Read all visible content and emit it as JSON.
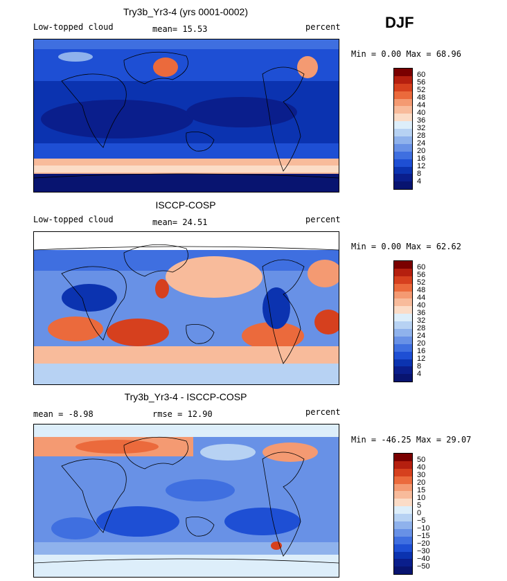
{
  "season": "DJF",
  "panels": [
    {
      "title": "Try3b_Yr3-4 (yrs 0001-0002)",
      "left_label": "Low-topped cloud",
      "center_label": "mean=  15.53",
      "right_label": "percent",
      "minmax": "Min =    0.00 Max =   68.96",
      "ticks": [
        "60",
        "56",
        "52",
        "48",
        "44",
        "40",
        "36",
        "32",
        "28",
        "24",
        "20",
        "16",
        "12",
        "8",
        "4"
      ]
    },
    {
      "title": "ISCCP-COSP",
      "left_label": "Low-topped cloud",
      "center_label": "mean=  24.51",
      "right_label": "percent",
      "minmax": "Min =    0.00 Max =   62.62",
      "ticks": [
        "60",
        "56",
        "52",
        "48",
        "44",
        "40",
        "36",
        "32",
        "28",
        "24",
        "20",
        "16",
        "12",
        "8",
        "4"
      ]
    },
    {
      "title": "Try3b_Yr3-4 - ISCCP-COSP",
      "left_label": "mean =   -8.98",
      "center_label": "rmse =   12.90",
      "right_label": "percent",
      "minmax": "Min = -46.25 Max =  29.07",
      "ticks": [
        "50",
        "40",
        "30",
        "20",
        "15",
        "10",
        "5",
        "0",
        "−5",
        "−10",
        "−15",
        "−20",
        "−30",
        "−40",
        "−50"
      ]
    }
  ],
  "colors": {
    "scale": [
      "#7a0000",
      "#b51f0f",
      "#d6401e",
      "#eb6a3c",
      "#f49a72",
      "#f8bb9b",
      "#fbdcc7",
      "#ddeefa",
      "#b7d2f3",
      "#8fb2ec",
      "#6891e6",
      "#3f6fe0",
      "#1e4fd4",
      "#0b33b0",
      "#0a1e8c",
      "#081470"
    ]
  }
}
